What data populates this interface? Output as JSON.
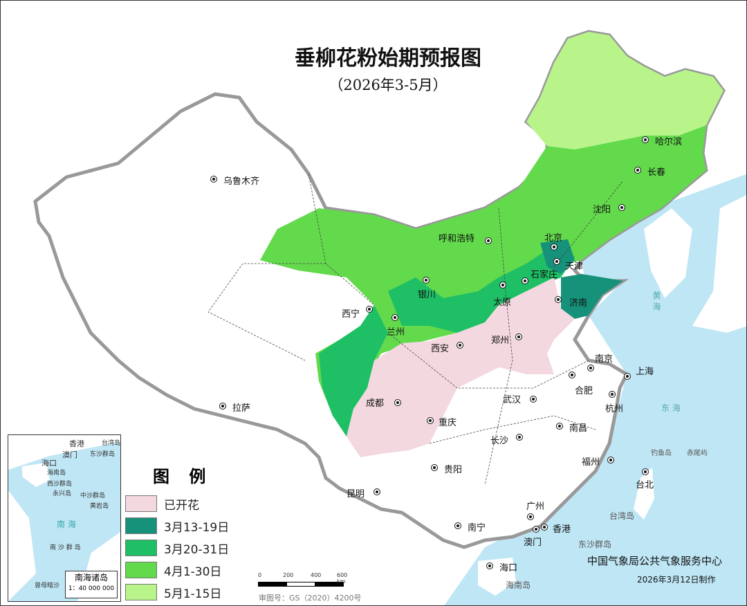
{
  "title": "垂柳花粉始期预报图",
  "subtitle": "（2026年3-5月）",
  "legend": {
    "title": "图 例",
    "items": [
      {
        "label": "已开花",
        "color": "#f3d8df"
      },
      {
        "label": "3月13-19日",
        "color": "#16927a"
      },
      {
        "label": "3月20-31日",
        "color": "#1fbf66"
      },
      {
        "label": "4月1-30日",
        "color": "#63d94c"
      },
      {
        "label": "5月1-15日",
        "color": "#b8f48a"
      }
    ]
  },
  "colors": {
    "sea": "#bfe6f5",
    "land": "#ffffff",
    "border": "#999999"
  },
  "cities": [
    "乌鲁木齐",
    "哈尔滨",
    "长春",
    "沈阳",
    "呼和浩特",
    "北京",
    "天津",
    "石家庄",
    "济南",
    "太原",
    "银川",
    "兰州",
    "西宁",
    "西安",
    "郑州",
    "南京",
    "合肥",
    "上海",
    "杭州",
    "武汉",
    "成都",
    "重庆",
    "长沙",
    "南昌",
    "拉萨",
    "贵阳",
    "福州",
    "台北",
    "昆明",
    "广州",
    "南宁",
    "香港",
    "澳门",
    "海口"
  ],
  "places": {
    "hainan": "海南岛",
    "taiwan": "台湾岛",
    "dongsha": "东沙群岛",
    "diaoyu": "钓鱼岛",
    "chiwei": "赤尾屿",
    "huanghai": "黄 海",
    "donghai": "东 海"
  },
  "inset": {
    "title": "南海诸岛",
    "scale": "1：40 000 000",
    "labels": [
      "香港",
      "澳门",
      "台湾岛",
      "东沙群岛",
      "海口",
      "海南岛",
      "西沙群岛",
      "永兴岛",
      "中沙群岛",
      "黄岩岛",
      "南 海",
      "南 沙 群 岛",
      "曾母暗沙"
    ]
  },
  "scalebar": {
    "ticks": [
      "0",
      "200",
      "400",
      "600 km"
    ]
  },
  "map_approval": "审图号：GS（2020）4200号",
  "credit": "中国气象局公共气象服务中心",
  "date": "2026年3月12日制作"
}
